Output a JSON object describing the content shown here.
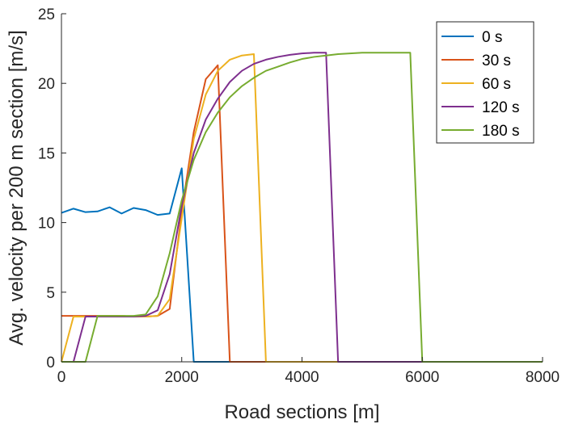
{
  "chart_data": {
    "type": "line",
    "xlabel": "Road sections [m]",
    "ylabel": "Avg. velocity per 200 m section [m/s]",
    "xlim": [
      0,
      8000
    ],
    "ylim": [
      0,
      25
    ],
    "xticks": [
      0,
      2000,
      4000,
      6000,
      8000
    ],
    "yticks": [
      0,
      5,
      10,
      15,
      20,
      25
    ],
    "grid": false,
    "legend_position": "top-right",
    "series": [
      {
        "name": "0 s",
        "color": "#0072BD",
        "x": [
          0,
          200,
          400,
          600,
          800,
          1000,
          1200,
          1400,
          1600,
          1800,
          2000,
          2200,
          8000
        ],
        "y": [
          10.7,
          11.0,
          10.75,
          10.8,
          11.1,
          10.65,
          11.05,
          10.9,
          10.55,
          10.65,
          13.9,
          0,
          0
        ]
      },
      {
        "name": "30 s",
        "color": "#D95319",
        "x": [
          0,
          200,
          400,
          600,
          800,
          1000,
          1200,
          1400,
          1600,
          1800,
          2000,
          2200,
          2400,
          2600,
          2800,
          8000
        ],
        "y": [
          3.3,
          3.3,
          3.3,
          3.3,
          3.3,
          3.3,
          3.25,
          3.25,
          3.3,
          3.8,
          10.8,
          16.5,
          20.3,
          21.3,
          0,
          0
        ]
      },
      {
        "name": "60 s",
        "color": "#EDB120",
        "x": [
          0,
          200,
          400,
          600,
          800,
          1000,
          1200,
          1400,
          1600,
          1800,
          2000,
          2200,
          2400,
          2600,
          2800,
          3000,
          3200,
          3400,
          8000
        ],
        "y": [
          0,
          3.25,
          3.25,
          3.25,
          3.25,
          3.3,
          3.25,
          3.25,
          3.3,
          4.5,
          10.3,
          16.0,
          19.2,
          20.9,
          21.7,
          22.0,
          22.1,
          0,
          0
        ]
      },
      {
        "name": "120 s",
        "color": "#7E2F8E",
        "x": [
          0,
          200,
          400,
          600,
          800,
          1000,
          1200,
          1400,
          1600,
          1800,
          2000,
          2200,
          2400,
          2600,
          2800,
          3000,
          3200,
          3400,
          3600,
          3800,
          4000,
          4200,
          4400,
          4600,
          8000
        ],
        "y": [
          0,
          0,
          3.25,
          3.25,
          3.25,
          3.25,
          3.25,
          3.3,
          3.7,
          6.3,
          11.2,
          15.0,
          17.4,
          18.9,
          20.1,
          20.9,
          21.4,
          21.7,
          21.9,
          22.05,
          22.15,
          22.2,
          22.2,
          0,
          0
        ]
      },
      {
        "name": "180 s",
        "color": "#77AC30",
        "x": [
          0,
          200,
          400,
          600,
          800,
          1000,
          1200,
          1400,
          1600,
          1800,
          2000,
          2200,
          2400,
          2600,
          2800,
          3000,
          3200,
          3400,
          3600,
          3800,
          4000,
          4200,
          4400,
          4600,
          4800,
          5000,
          5200,
          5400,
          5600,
          5800,
          6000,
          8000
        ],
        "y": [
          0,
          0,
          0,
          3.3,
          3.3,
          3.3,
          3.3,
          3.4,
          4.7,
          7.8,
          11.6,
          14.5,
          16.5,
          17.9,
          19.0,
          19.8,
          20.4,
          20.9,
          21.2,
          21.5,
          21.75,
          21.9,
          22.0,
          22.1,
          22.15,
          22.2,
          22.2,
          22.2,
          22.2,
          22.2,
          0,
          0
        ]
      }
    ]
  }
}
